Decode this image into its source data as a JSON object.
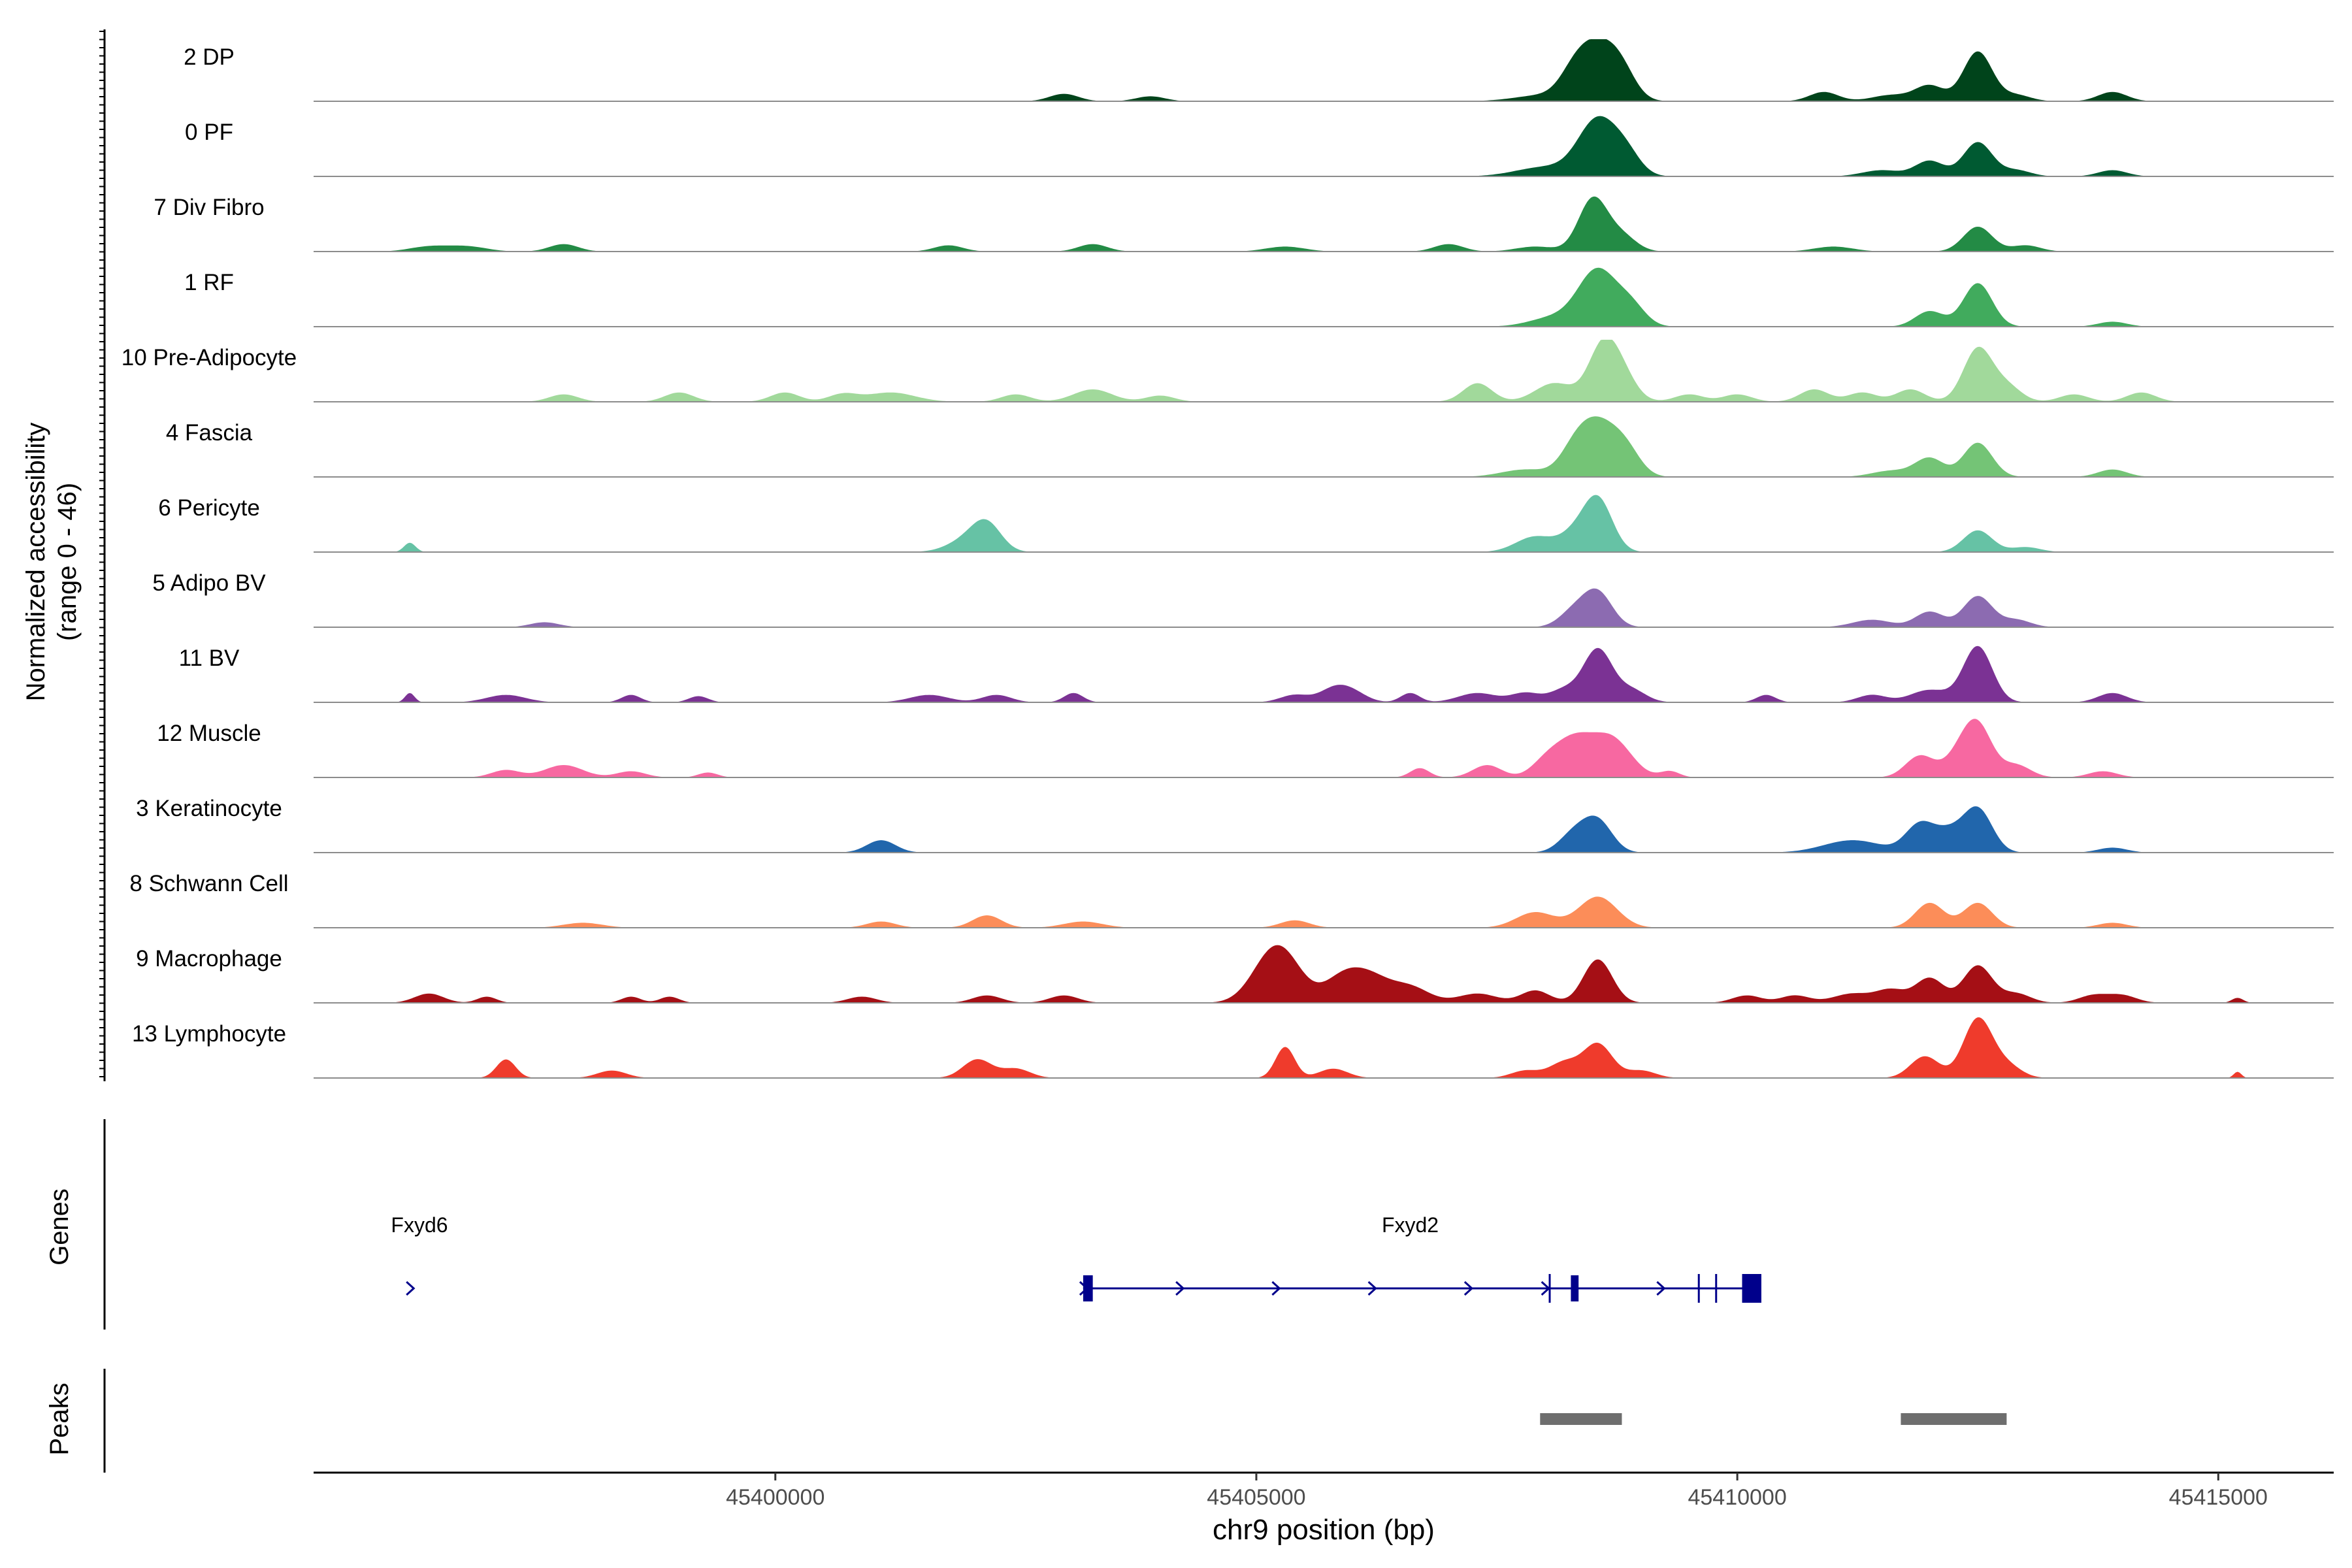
{
  "chart_data": {
    "type": "area",
    "title": "",
    "y_axis_label_line1": "Normalized accessibility",
    "y_axis_label_line2": "(range 0 - 46)",
    "ylim": [
      0,
      46
    ],
    "xlabel": "chr9 position (bp)",
    "xlim": [
      45395200,
      45416200
    ],
    "x_ticks": [
      45400000,
      45405000,
      45410000,
      45415000
    ],
    "x_tick_labels": [
      "45400000",
      "45405000",
      "45410000",
      "45415000"
    ],
    "tracks": [
      {
        "name": "2 DP",
        "color": "#00441b",
        "peaks": [
          [
            45403000,
            0.12,
            150
          ],
          [
            45403900,
            0.08,
            150
          ],
          [
            45408000,
            0.1,
            300
          ],
          [
            45408300,
            0.3,
            150
          ],
          [
            45408550,
            0.85,
            200
          ],
          [
            45408800,
            0.35,
            150
          ],
          [
            45410900,
            0.15,
            150
          ],
          [
            45411600,
            0.1,
            200
          ],
          [
            45412000,
            0.25,
            150
          ],
          [
            45412500,
            0.8,
            150
          ],
          [
            45412900,
            0.1,
            150
          ],
          [
            45413900,
            0.15,
            150
          ]
        ]
      },
      {
        "name": "0 PF",
        "color": "#005a32",
        "peaks": [
          [
            45408000,
            0.15,
            300
          ],
          [
            45408550,
            0.9,
            200
          ],
          [
            45408850,
            0.3,
            150
          ],
          [
            45411500,
            0.1,
            200
          ],
          [
            45412000,
            0.25,
            150
          ],
          [
            45412500,
            0.55,
            150
          ],
          [
            45412900,
            0.1,
            150
          ],
          [
            45413900,
            0.1,
            150
          ]
        ]
      },
      {
        "name": "7 Div Fibro",
        "color": "#238b45",
        "peaks": [
          [
            45396400,
            0.08,
            200
          ],
          [
            45396800,
            0.08,
            200
          ],
          [
            45397800,
            0.12,
            150
          ],
          [
            45401800,
            0.1,
            150
          ],
          [
            45403300,
            0.12,
            150
          ],
          [
            45405300,
            0.08,
            200
          ],
          [
            45407000,
            0.12,
            150
          ],
          [
            45407900,
            0.08,
            200
          ],
          [
            45408500,
            0.85,
            150
          ],
          [
            45408800,
            0.25,
            150
          ],
          [
            45411000,
            0.08,
            200
          ],
          [
            45412500,
            0.4,
            150
          ],
          [
            45413000,
            0.1,
            150
          ]
        ]
      },
      {
        "name": "1 RF",
        "color": "#41ab5d",
        "peaks": [
          [
            45408100,
            0.15,
            250
          ],
          [
            45408550,
            0.9,
            200
          ],
          [
            45408900,
            0.3,
            150
          ],
          [
            45412000,
            0.25,
            150
          ],
          [
            45412500,
            0.7,
            150
          ],
          [
            45413900,
            0.08,
            150
          ]
        ]
      },
      {
        "name": "10 Pre-Adipocyte",
        "color": "#a1d99b",
        "peaks": [
          [
            45397800,
            0.12,
            150
          ],
          [
            45399000,
            0.15,
            150
          ],
          [
            45400100,
            0.15,
            150
          ],
          [
            45400700,
            0.12,
            150
          ],
          [
            45401200,
            0.15,
            250
          ],
          [
            45402500,
            0.12,
            150
          ],
          [
            45403300,
            0.2,
            200
          ],
          [
            45404000,
            0.1,
            150
          ],
          [
            45407300,
            0.3,
            150
          ],
          [
            45408100,
            0.3,
            200
          ],
          [
            45408600,
            0.85,
            150
          ],
          [
            45408800,
            0.4,
            150
          ],
          [
            45409500,
            0.12,
            150
          ],
          [
            45410000,
            0.12,
            150
          ],
          [
            45410800,
            0.2,
            150
          ],
          [
            45411300,
            0.15,
            150
          ],
          [
            45411800,
            0.2,
            150
          ],
          [
            45412500,
            0.85,
            150
          ],
          [
            45412800,
            0.25,
            150
          ],
          [
            45413500,
            0.12,
            150
          ],
          [
            45414200,
            0.15,
            150
          ]
        ]
      },
      {
        "name": "4 Fascia",
        "color": "#74c476",
        "peaks": [
          [
            45407800,
            0.12,
            250
          ],
          [
            45408300,
            0.3,
            150
          ],
          [
            45408550,
            0.85,
            200
          ],
          [
            45408850,
            0.35,
            150
          ],
          [
            45411600,
            0.1,
            200
          ],
          [
            45412000,
            0.3,
            150
          ],
          [
            45412500,
            0.55,
            150
          ],
          [
            45413900,
            0.12,
            150
          ]
        ]
      },
      {
        "name": "6 Pericyte",
        "color": "#66c2a5",
        "peaks": [
          [
            45396200,
            0.15,
            60
          ],
          [
            45402000,
            0.2,
            200
          ],
          [
            45402200,
            0.4,
            150
          ],
          [
            45407900,
            0.25,
            200
          ],
          [
            45408300,
            0.25,
            150
          ],
          [
            45408550,
            0.85,
            150
          ],
          [
            45412500,
            0.35,
            150
          ],
          [
            45413000,
            0.08,
            150
          ]
        ]
      },
      {
        "name": "5 Adipo BV",
        "color": "#8c6bb1",
        "peaks": [
          [
            45397600,
            0.08,
            150
          ],
          [
            45408300,
            0.25,
            150
          ],
          [
            45408550,
            0.55,
            150
          ],
          [
            45411400,
            0.12,
            200
          ],
          [
            45412000,
            0.25,
            150
          ],
          [
            45412500,
            0.5,
            150
          ],
          [
            45412900,
            0.12,
            150
          ]
        ]
      },
      {
        "name": "11 BV",
        "color": "#7b3294",
        "peaks": [
          [
            45396200,
            0.15,
            50
          ],
          [
            45397200,
            0.12,
            200
          ],
          [
            45398500,
            0.12,
            100
          ],
          [
            45399200,
            0.1,
            100
          ],
          [
            45401600,
            0.12,
            200
          ],
          [
            45402300,
            0.12,
            150
          ],
          [
            45403100,
            0.15,
            100
          ],
          [
            45405400,
            0.12,
            150
          ],
          [
            45405800,
            0.2,
            150
          ],
          [
            45406000,
            0.15,
            150
          ],
          [
            45406600,
            0.15,
            100
          ],
          [
            45407300,
            0.15,
            200
          ],
          [
            45407800,
            0.15,
            150
          ],
          [
            45408200,
            0.2,
            150
          ],
          [
            45408550,
            0.85,
            150
          ],
          [
            45408900,
            0.2,
            150
          ],
          [
            45410300,
            0.12,
            100
          ],
          [
            45411400,
            0.12,
            150
          ],
          [
            45412000,
            0.2,
            200
          ],
          [
            45412500,
            0.9,
            150
          ],
          [
            45413900,
            0.15,
            150
          ]
        ]
      },
      {
        "name": "12 Muscle",
        "color": "#f768a1",
        "peaks": [
          [
            45397200,
            0.12,
            150
          ],
          [
            45397800,
            0.2,
            200
          ],
          [
            45398500,
            0.1,
            150
          ],
          [
            45399300,
            0.08,
            100
          ],
          [
            45406700,
            0.15,
            100
          ],
          [
            45407400,
            0.2,
            150
          ],
          [
            45408000,
            0.2,
            150
          ],
          [
            45408300,
            0.6,
            200
          ],
          [
            45408700,
            0.6,
            200
          ],
          [
            45409300,
            0.1,
            100
          ],
          [
            45411900,
            0.35,
            150
          ],
          [
            45412300,
            0.3,
            150
          ],
          [
            45412500,
            0.8,
            150
          ],
          [
            45412900,
            0.2,
            150
          ],
          [
            45413800,
            0.1,
            150
          ]
        ]
      },
      {
        "name": "3 Keratinocyte",
        "color": "#2166ac",
        "peaks": [
          [
            45401100,
            0.2,
            150
          ],
          [
            45408300,
            0.3,
            150
          ],
          [
            45408550,
            0.5,
            150
          ],
          [
            45411200,
            0.2,
            300
          ],
          [
            45411900,
            0.45,
            150
          ],
          [
            45412200,
            0.3,
            150
          ],
          [
            45412500,
            0.7,
            150
          ],
          [
            45413900,
            0.08,
            150
          ]
        ]
      },
      {
        "name": "8 Schwann Cell",
        "color": "#fc8d59",
        "peaks": [
          [
            45398000,
            0.08,
            200
          ],
          [
            45401100,
            0.1,
            150
          ],
          [
            45402200,
            0.2,
            150
          ],
          [
            45403200,
            0.1,
            200
          ],
          [
            45405400,
            0.12,
            150
          ],
          [
            45407900,
            0.25,
            200
          ],
          [
            45408550,
            0.5,
            200
          ],
          [
            45412000,
            0.4,
            150
          ],
          [
            45412500,
            0.4,
            150
          ],
          [
            45413900,
            0.08,
            150
          ]
        ]
      },
      {
        "name": "9 Macrophage",
        "color": "#a50f15",
        "peaks": [
          [
            45396400,
            0.15,
            150
          ],
          [
            45397000,
            0.1,
            100
          ],
          [
            45398500,
            0.1,
            100
          ],
          [
            45398900,
            0.1,
            100
          ],
          [
            45400900,
            0.1,
            150
          ],
          [
            45402200,
            0.12,
            150
          ],
          [
            45403000,
            0.12,
            150
          ],
          [
            45405100,
            0.45,
            200
          ],
          [
            45405300,
            0.6,
            200
          ],
          [
            45405900,
            0.4,
            200
          ],
          [
            45406200,
            0.35,
            200
          ],
          [
            45406600,
            0.25,
            200
          ],
          [
            45407300,
            0.15,
            200
          ],
          [
            45407900,
            0.2,
            150
          ],
          [
            45408550,
            0.7,
            150
          ],
          [
            45410100,
            0.12,
            150
          ],
          [
            45410600,
            0.12,
            150
          ],
          [
            45411200,
            0.15,
            200
          ],
          [
            45411600,
            0.2,
            150
          ],
          [
            45412000,
            0.4,
            150
          ],
          [
            45412500,
            0.6,
            150
          ],
          [
            45412900,
            0.15,
            150
          ],
          [
            45413700,
            0.12,
            150
          ],
          [
            45414000,
            0.12,
            150
          ],
          [
            45415200,
            0.08,
            60
          ]
        ]
      },
      {
        "name": "13 Lymphocyte",
        "color": "#ef3b2c",
        "peaks": [
          [
            45397200,
            0.3,
            100
          ],
          [
            45398300,
            0.12,
            150
          ],
          [
            45402100,
            0.3,
            150
          ],
          [
            45402500,
            0.15,
            150
          ],
          [
            45405300,
            0.5,
            100
          ],
          [
            45405800,
            0.15,
            150
          ],
          [
            45407800,
            0.12,
            150
          ],
          [
            45408200,
            0.25,
            150
          ],
          [
            45408550,
            0.55,
            150
          ],
          [
            45409000,
            0.12,
            150
          ],
          [
            45411950,
            0.35,
            150
          ],
          [
            45412500,
            0.95,
            150
          ],
          [
            45412800,
            0.2,
            150
          ],
          [
            45415200,
            0.1,
            40
          ]
        ]
      }
    ],
    "genes": {
      "label": "Genes",
      "gene_names": [
        "Fxyd6",
        "Fxyd2"
      ],
      "color": "#00008b",
      "fxyd6_arrow_x": 45396200,
      "fxyd6_label_x": 45396300,
      "fxyd2_label_x": 45406600,
      "fxyd2_start": 45403200,
      "fxyd2_end": 45410200,
      "fxyd2_exons": [
        [
          45403200,
          45403300
        ],
        [
          45408270,
          45408350
        ],
        [
          45410050,
          45410250
        ]
      ],
      "fxyd2_ticks": [
        45408050,
        45409600,
        45409780
      ],
      "fxyd2_chevrons": [
        45403200,
        45404200,
        45405200,
        45406200,
        45407200,
        45408000,
        45409200
      ]
    },
    "peaks_track": {
      "label": "Peaks",
      "color": "#6e6e6e",
      "regions": [
        [
          45407950,
          45408800
        ],
        [
          45411700,
          45412800
        ]
      ]
    }
  }
}
